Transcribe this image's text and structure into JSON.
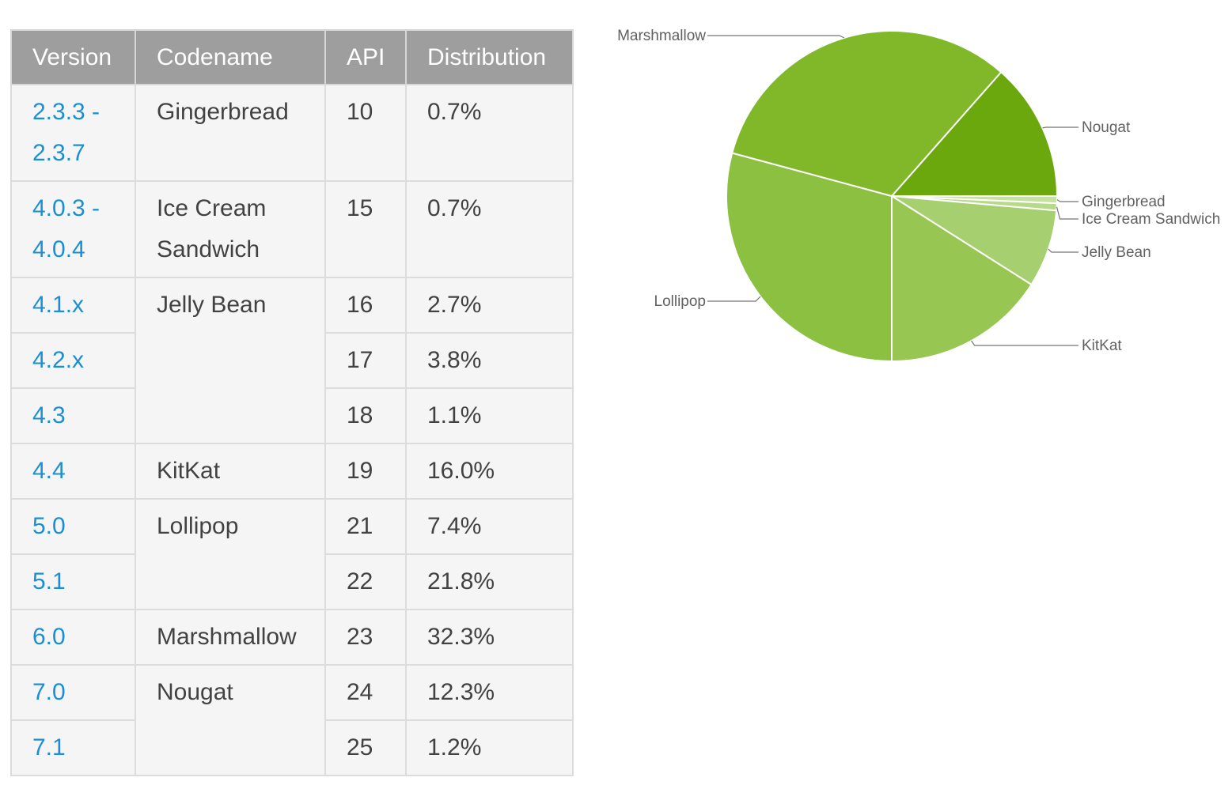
{
  "table": {
    "headers": [
      "Version",
      "Codename",
      "API",
      "Distribution"
    ],
    "rows": [
      {
        "version_line1": "2.3.3 -",
        "version_line2": "2.3.7",
        "codename_line1": "Gingerbread",
        "codename_line2": "",
        "api": "10",
        "distribution": "0.7%"
      },
      {
        "version_line1": "4.0.3 -",
        "version_line2": "4.0.4",
        "codename_line1": "Ice Cream",
        "codename_line2": "Sandwich",
        "api": "15",
        "distribution": "0.7%"
      },
      {
        "version": "4.1.x",
        "codename": "Jelly Bean",
        "api": "16",
        "distribution": "2.7%"
      },
      {
        "version": "4.2.x",
        "api": "17",
        "distribution": "3.8%"
      },
      {
        "version": "4.3",
        "api": "18",
        "distribution": "1.1%"
      },
      {
        "version": "4.4",
        "codename": "KitKat",
        "api": "19",
        "distribution": "16.0%"
      },
      {
        "version": "5.0",
        "codename": "Lollipop",
        "api": "21",
        "distribution": "7.4%"
      },
      {
        "version": "5.1",
        "api": "22",
        "distribution": "21.8%"
      },
      {
        "version": "6.0",
        "codename": "Marshmallow",
        "api": "23",
        "distribution": "32.3%"
      },
      {
        "version": "7.0",
        "codename": "Nougat",
        "api": "24",
        "distribution": "12.3%"
      },
      {
        "version": "7.1",
        "api": "25",
        "distribution": "1.2%"
      }
    ]
  },
  "colors": {
    "header_bg": "#9e9e9e",
    "link": "#1a8fd3",
    "slice_colors": {
      "Nougat": "#6aa80e",
      "Gingerbread": "#c5e3a0",
      "Ice Cream Sandwich": "#b6da88",
      "Jelly Bean": "#a6d070",
      "KitKat": "#97c652",
      "Lollipop": "#8bc040",
      "Marshmallow": "#80b82a"
    }
  },
  "chart_data": {
    "type": "pie",
    "title": "",
    "slices": [
      {
        "label": "Nougat",
        "value": 13.5
      },
      {
        "label": "Gingerbread",
        "value": 0.7
      },
      {
        "label": "Ice Cream Sandwich",
        "value": 0.7
      },
      {
        "label": "Jelly Bean",
        "value": 7.6
      },
      {
        "label": "KitKat",
        "value": 16.0
      },
      {
        "label": "Lollipop",
        "value": 29.2
      },
      {
        "label": "Marshmallow",
        "value": 32.3
      }
    ],
    "start": "3 o'clock, clockwise",
    "legend": "callout labels"
  }
}
